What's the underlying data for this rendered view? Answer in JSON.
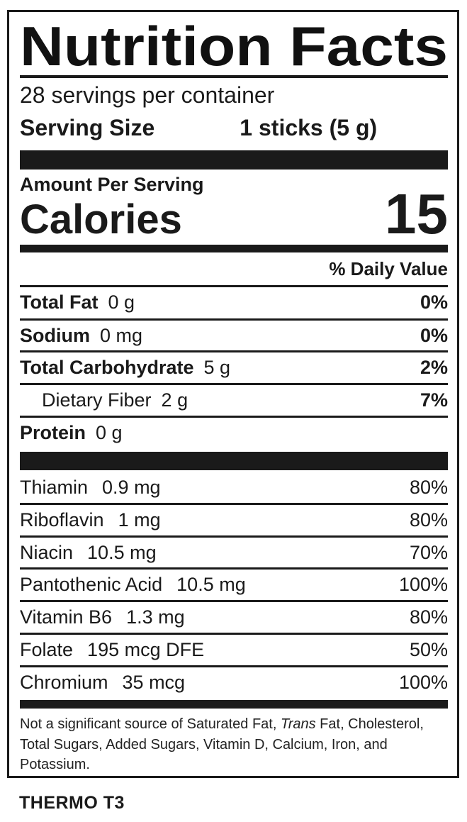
{
  "title": "Nutrition Facts",
  "servings_per_container": "28 servings per container",
  "serving_size": {
    "label": "Serving Size",
    "value": "1 sticks (5 g)"
  },
  "amount_per_serving": "Amount Per Serving",
  "calories": {
    "label": "Calories",
    "value": "15"
  },
  "daily_value_header": "% Daily Value",
  "nutrients": [
    {
      "name": "Total Fat",
      "amount": "0 g",
      "dv": "0%"
    },
    {
      "name": "Sodium",
      "amount": "0 mg",
      "dv": "0%"
    },
    {
      "name": "Total Carbohydrate",
      "amount": "5 g",
      "dv": "2%"
    },
    {
      "name": "Dietary Fiber",
      "amount": "2 g",
      "dv": "7%"
    },
    {
      "name": "Protein",
      "amount": "0 g",
      "dv": ""
    }
  ],
  "vitamins": [
    {
      "name": "Thiamin",
      "amount": "0.9 mg",
      "dv": "80%"
    },
    {
      "name": "Riboflavin",
      "amount": "1 mg",
      "dv": "80%"
    },
    {
      "name": "Niacin",
      "amount": "10.5 mg",
      "dv": "70%"
    },
    {
      "name": "Pantothenic Acid",
      "amount": "10.5 mg",
      "dv": "100%"
    },
    {
      "name": "Vitamin B6",
      "amount": "1.3 mg",
      "dv": "80%"
    },
    {
      "name": "Folate",
      "amount": "195 mcg DFE",
      "dv": "50%"
    },
    {
      "name": "Chromium",
      "amount": "35 mcg",
      "dv": "100%"
    }
  ],
  "footnote": {
    "part1": "Not a significant source of Saturated Fat, ",
    "italic": "Trans",
    "part2": " Fat, Cholesterol, Total Sugars, Added Sugars, Vitamin D, Calcium, Iron, and Potassium."
  },
  "brand": "THERMO T3"
}
